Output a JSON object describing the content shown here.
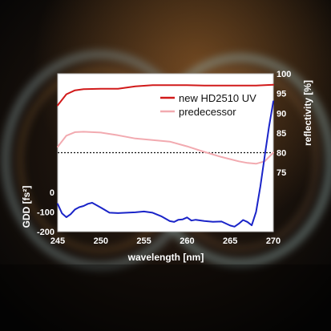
{
  "colors": {
    "new": "#d11a1a",
    "predecessor": "#f2aab0",
    "gdd": "#1a24c8",
    "reference": "#111111"
  },
  "chart_data": {
    "type": "line",
    "x_range": [
      245,
      270
    ],
    "x_ticks": [
      "245",
      "250",
      "255",
      "260",
      "265",
      "270"
    ],
    "xlabel": "wavelength [nm]",
    "left_axis": {
      "label": "GDD [fs²]",
      "range": [
        -200,
        600
      ],
      "ticks": [
        "-200",
        "-100",
        "0"
      ]
    },
    "right_axis": {
      "label": "reflectivity [%]",
      "range": [
        60,
        100
      ],
      "ticks": [
        "100",
        "95",
        "90",
        "85",
        "80",
        "75"
      ]
    },
    "reference_line": {
      "axis": "left",
      "y": 200,
      "style": "dotted"
    },
    "legend": {
      "placement": "top-right"
    },
    "series": [
      {
        "name": "new HD2510 UV",
        "axis": "right",
        "x": [
          245,
          246,
          247,
          248,
          250,
          252,
          254,
          256,
          258,
          260,
          262,
          264,
          266,
          268,
          270
        ],
        "y": [
          92,
          94.8,
          95.8,
          96.1,
          96.2,
          96.2,
          96.8,
          97.1,
          97.1,
          97.1,
          97.0,
          97.0,
          97.0,
          97.0,
          97.2
        ]
      },
      {
        "name": "predecessor",
        "axis": "right",
        "x": [
          245,
          246,
          247,
          248,
          250,
          252,
          254,
          256,
          258,
          260,
          262,
          264,
          266,
          267,
          268,
          269,
          270
        ],
        "y": [
          81.5,
          84.3,
          85.2,
          85.3,
          85.1,
          84.4,
          83.6,
          83.2,
          82.8,
          81.6,
          80.2,
          78.9,
          77.8,
          77.4,
          77.2,
          77.8,
          80.0
        ]
      },
      {
        "name": "GDD",
        "axis": "left",
        "x": [
          245,
          245.5,
          246,
          246.5,
          247,
          247.5,
          248,
          248.5,
          249,
          250,
          251,
          252,
          253,
          254,
          255,
          256,
          257,
          258,
          258.5,
          259,
          259.5,
          260,
          260.5,
          261,
          262,
          263,
          264,
          265,
          265.5,
          266,
          266.5,
          267,
          267.5,
          268,
          268.5,
          269,
          269.5,
          270
        ],
        "y": [
          -60,
          -108,
          -127,
          -112,
          -88,
          -76,
          -70,
          -59,
          -54,
          -78,
          -104,
          -106,
          -104,
          -102,
          -98,
          -104,
          -122,
          -147,
          -151,
          -140,
          -138,
          -128,
          -144,
          -140,
          -146,
          -150,
          -149,
          -169,
          -175,
          -160,
          -141,
          -151,
          -168,
          -100,
          30,
          180,
          330,
          460
        ]
      }
    ]
  }
}
